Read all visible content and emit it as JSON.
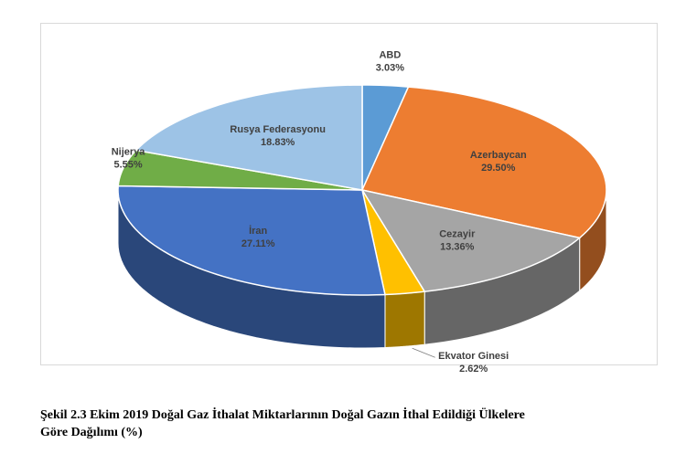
{
  "chart_data": {
    "type": "pie",
    "style": "3d",
    "categories": [
      "ABD",
      "Azerbaycan",
      "Cezayir",
      "Ekvator Ginesi",
      "İran",
      "Nijerya",
      "Rusya Federasyonu"
    ],
    "values": [
      3.03,
      29.5,
      13.36,
      2.62,
      27.11,
      5.55,
      18.83
    ],
    "value_labels": [
      "3.03%",
      "29.50%",
      "13.36%",
      "2.62%",
      "27.11%",
      "5.55%",
      "18.83%"
    ],
    "colors": [
      "#5B9BD5",
      "#ED7D31",
      "#A5A5A5",
      "#FFC000",
      "#4472C4",
      "#70AD47",
      "#9DC3E6"
    ],
    "start_angle_deg": 90,
    "direction": "clockwise"
  },
  "caption": {
    "line1": "Şekil 2.3 Ekim 2019 Doğal Gaz İthalat Miktarlarının Doğal Gazın İthal Edildiği Ülkelere",
    "line2": "Göre Dağılımı (%)"
  }
}
